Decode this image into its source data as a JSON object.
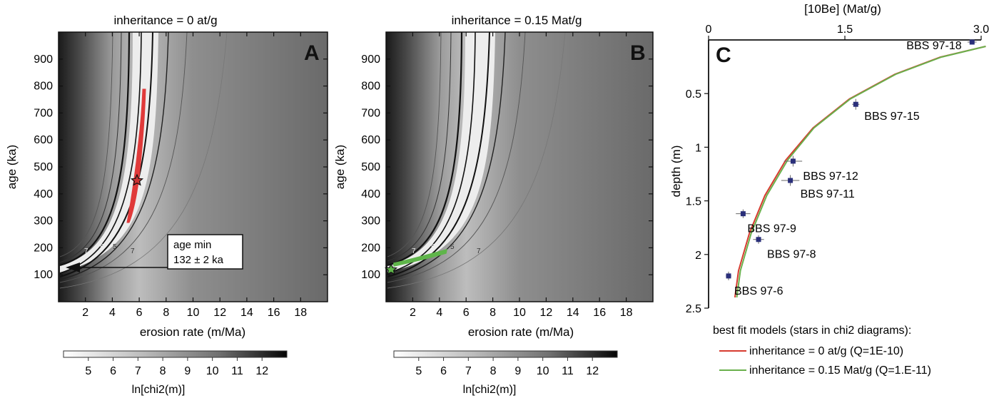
{
  "panelA": {
    "title": "inheritance = 0 at/g",
    "letter": "A",
    "xlabel": "erosion rate (m/Ma)",
    "ylabel": "age (ka)",
    "xticks": [
      2,
      4,
      6,
      8,
      10,
      12,
      14,
      16,
      18
    ],
    "yticks": [
      100,
      200,
      300,
      400,
      500,
      600,
      700,
      800,
      900
    ],
    "xlim": [
      0,
      20
    ],
    "ylim": [
      0,
      1000
    ],
    "contour_labels": [
      "7",
      "5",
      "5",
      "7"
    ],
    "callout_line1": "age min",
    "callout_line2": "132 ± 2 ka",
    "colorbar_ticks": [
      5,
      6,
      7,
      8,
      9,
      10,
      11,
      12
    ],
    "colorbar_label": "ln[chi2(m)]",
    "accent": "#e03a3a"
  },
  "panelB": {
    "title": "inheritance = 0.15 Mat/g",
    "letter": "B",
    "xlabel": "erosion rate (m/Ma)",
    "ylabel": "age (ka)",
    "xticks": [
      2,
      4,
      6,
      8,
      10,
      12,
      14,
      16,
      18
    ],
    "yticks": [
      100,
      200,
      300,
      400,
      500,
      600,
      700,
      800,
      900
    ],
    "xlim": [
      0,
      20
    ],
    "ylim": [
      0,
      1000
    ],
    "contour_labels": [
      "7",
      "5",
      "5",
      "7"
    ],
    "colorbar_ticks": [
      5,
      6,
      7,
      8,
      9,
      10,
      11,
      12
    ],
    "colorbar_label": "ln[chi2(m)]",
    "accent": "#5fb54a"
  },
  "chart_data": {
    "type": "scatter",
    "letter": "C",
    "xlabel": "[10Be] (Mat/g)",
    "ylabel": "depth (m)",
    "xticks": [
      "0",
      "1.5",
      "3.0"
    ],
    "yticks": [
      "0.5",
      "1",
      "1.5",
      "2",
      "2.5"
    ],
    "xlim": [
      0,
      3.0
    ],
    "ylim": [
      0,
      2.5
    ],
    "points": [
      {
        "name": "BBS 97-18",
        "x": 2.9,
        "y": 0.02,
        "xerr": 0.05,
        "yerr": 0.02
      },
      {
        "name": "BBS 97-15",
        "x": 1.62,
        "y": 0.6,
        "xerr": 0.04,
        "yerr": 0.05
      },
      {
        "name": "BBS 97-12",
        "x": 0.93,
        "y": 1.13,
        "xerr": 0.1,
        "yerr": 0.05
      },
      {
        "name": "BBS 97-11",
        "x": 0.9,
        "y": 1.31,
        "xerr": 0.1,
        "yerr": 0.05
      },
      {
        "name": "BBS 97-9",
        "x": 0.38,
        "y": 1.62,
        "xerr": 0.08,
        "yerr": 0.04
      },
      {
        "name": "BBS 97-8",
        "x": 0.55,
        "y": 1.86,
        "xerr": 0.06,
        "yerr": 0.04
      },
      {
        "name": "BBS 97-6",
        "x": 0.22,
        "y": 2.2,
        "xerr": 0.03,
        "yerr": 0.04
      }
    ],
    "series": [
      {
        "name": "inheritance = 0 at/g (Q=1E-10)",
        "color": "#d63b2f",
        "x": [
          0.29,
          0.33,
          0.45,
          0.62,
          0.85,
          1.15,
          1.55,
          2.05,
          2.55,
          3.05
        ],
        "y": [
          2.4,
          2.15,
          1.8,
          1.45,
          1.12,
          0.82,
          0.55,
          0.32,
          0.16,
          0.06
        ]
      },
      {
        "name": "inheritance = 0.15 Mat/g (Q=1.E-11)",
        "color": "#6ab04c",
        "x": [
          0.31,
          0.35,
          0.47,
          0.64,
          0.87,
          1.16,
          1.56,
          2.06,
          2.56,
          3.05
        ],
        "y": [
          2.4,
          2.15,
          1.8,
          1.45,
          1.12,
          0.82,
          0.55,
          0.32,
          0.16,
          0.06
        ]
      }
    ],
    "legend_title": "best fit models (stars in chi2 diagrams):",
    "legend_placement": "bottom"
  }
}
